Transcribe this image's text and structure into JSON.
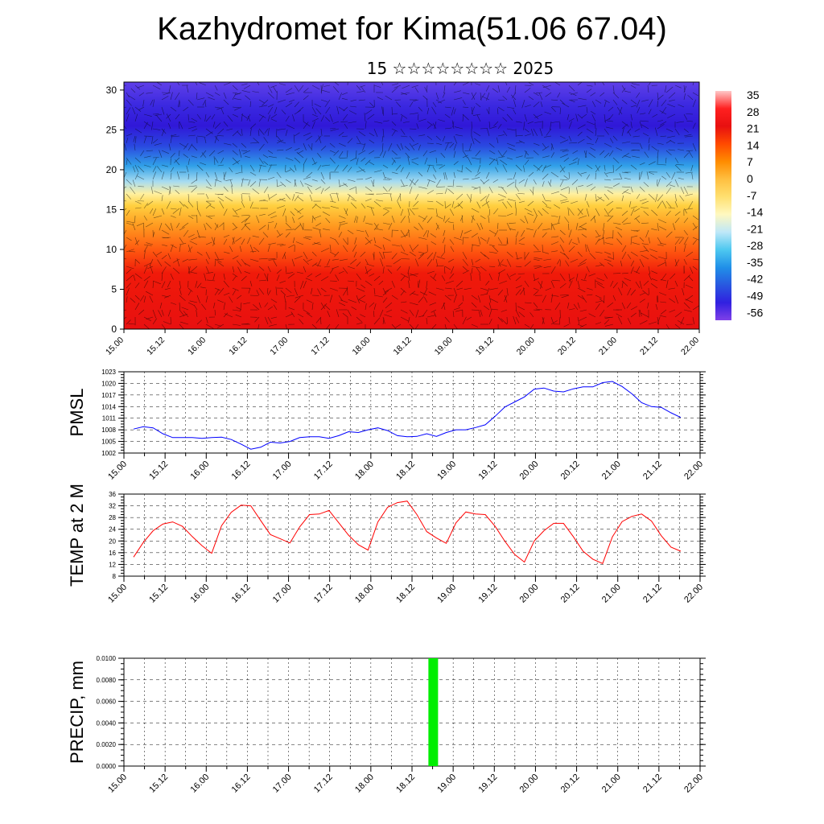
{
  "header": {
    "title": "Kazhydromet for Kima(51.06 67.04)",
    "subtitle": "15 ☆☆☆☆☆☆☆☆ 2025"
  },
  "chart_data": [
    {
      "type": "heatmap",
      "name": "cross-section",
      "x_ticks": [
        "15.00",
        "15.12",
        "16.00",
        "16.12",
        "17.00",
        "17.12",
        "18.00",
        "18.12",
        "19.00",
        "19.12",
        "20.00",
        "20.12",
        "21.00",
        "21.12",
        "22.00"
      ],
      "y_ticks": [
        "0",
        "5",
        "10",
        "15",
        "20",
        "25",
        "30"
      ],
      "ylim": [
        0,
        31
      ],
      "colorbar": {
        "labels": [
          "35",
          "28",
          "21",
          "14",
          "7",
          "0",
          "-7",
          "-14",
          "-21",
          "-28",
          "-35",
          "-42",
          "-49",
          "-56"
        ],
        "colors": [
          "#ffc8c8",
          "#ff2020",
          "#e81010",
          "#ff4a00",
          "#ff8c00",
          "#ffbf40",
          "#ffe070",
          "#fff8c0",
          "#bfe8f8",
          "#4ec8f0",
          "#2090e8",
          "#2858e0",
          "#3020e0",
          "#8040e8"
        ]
      },
      "vertical_profile": [
        {
          "y": 0,
          "color": "#e81010"
        },
        {
          "y": 7,
          "color": "#f01a0a"
        },
        {
          "y": 10,
          "color": "#ff5a10"
        },
        {
          "y": 13,
          "color": "#ff9a20"
        },
        {
          "y": 15.5,
          "color": "#ffd040"
        },
        {
          "y": 17,
          "color": "#fff0a0"
        },
        {
          "y": 18.5,
          "color": "#a8dcf0"
        },
        {
          "y": 20.5,
          "color": "#30a0e8"
        },
        {
          "y": 23,
          "color": "#2a48e0"
        },
        {
          "y": 25.5,
          "color": "#3018d8"
        },
        {
          "y": 28,
          "color": "#3a28e0"
        },
        {
          "y": 31,
          "color": "#6040e8"
        }
      ]
    },
    {
      "type": "line",
      "ylabel": "PMSL",
      "y_ticks": [
        "1002",
        "1005",
        "1008",
        "1011",
        "1014",
        "1017",
        "1020",
        "1023"
      ],
      "ylim": [
        1002,
        1023
      ],
      "x_ticks": [
        "15.00",
        "15.12",
        "16.00",
        "16.12",
        "17.00",
        "17.12",
        "18.00",
        "18.12",
        "19.00",
        "19.12",
        "20.00",
        "20.12",
        "21.00",
        "21.12",
        "22.00"
      ],
      "color": "#0000ff",
      "x": [
        0,
        3,
        6,
        9,
        12,
        15,
        18,
        21,
        24,
        27,
        30,
        33,
        36,
        39,
        42,
        45,
        48,
        51,
        54,
        57,
        60,
        63,
        66,
        69,
        72,
        75,
        78,
        81,
        84,
        87,
        90,
        93,
        96,
        99,
        102,
        105,
        108,
        111,
        114,
        117,
        120,
        123,
        126,
        129,
        132,
        135,
        138,
        141,
        144,
        147,
        150,
        153,
        156,
        159,
        162,
        165,
        168
      ],
      "values": [
        1008.2,
        1008.8,
        1008.5,
        1007,
        1006,
        1006,
        1006,
        1005.8,
        1006,
        1006.1,
        1005.5,
        1004.3,
        1003,
        1003.5,
        1004.8,
        1004.6,
        1005,
        1006,
        1006.2,
        1006.2,
        1005.8,
        1006.5,
        1007.5,
        1007.3,
        1008,
        1008.5,
        1007.8,
        1006.5,
        1006.2,
        1006.3,
        1007,
        1006.3,
        1007.3,
        1008,
        1008,
        1008.6,
        1009.3,
        1011.5,
        1013.9,
        1015.2,
        1016.5,
        1018.5,
        1018.8,
        1018,
        1017.8,
        1018.6,
        1019.1,
        1019.1,
        1020.2,
        1020.5,
        1019.2,
        1017.3,
        1015,
        1014,
        1013.8,
        1012.4,
        1011.2
      ]
    },
    {
      "type": "line",
      "ylabel": "TEMP at 2 M",
      "y_ticks": [
        "8",
        "12",
        "16",
        "20",
        "24",
        "28",
        "32",
        "36"
      ],
      "ylim": [
        8,
        36
      ],
      "x_ticks": [
        "15.00",
        "15.12",
        "16.00",
        "16.12",
        "17.00",
        "17.12",
        "18.00",
        "18.12",
        "19.00",
        "19.12",
        "20.00",
        "20.12",
        "21.00",
        "21.12",
        "22.00"
      ],
      "color": "#ff0000",
      "x": [
        0,
        3,
        6,
        9,
        12,
        15,
        18,
        21,
        24,
        27,
        30,
        33,
        36,
        39,
        42,
        45,
        48,
        51,
        54,
        57,
        60,
        63,
        66,
        69,
        72,
        75,
        78,
        81,
        84,
        87,
        90,
        93,
        96,
        99,
        102,
        105,
        108,
        111,
        114,
        117,
        120,
        123,
        126,
        129,
        132,
        135,
        138,
        141,
        144,
        147,
        150,
        153,
        156,
        159,
        162,
        165,
        168
      ],
      "values": [
        14.5,
        19.5,
        23.5,
        25.8,
        26.5,
        25,
        21.5,
        18.4,
        15.8,
        25.2,
        29.8,
        32.2,
        32,
        27,
        22.2,
        20.8,
        19.3,
        24.8,
        29,
        29.2,
        30.4,
        26.2,
        22,
        18.7,
        16.9,
        26.5,
        31.5,
        33.1,
        33.6,
        29,
        23.2,
        21,
        19.2,
        26.2,
        29.9,
        29.2,
        29,
        25,
        19.9,
        15.4,
        12.8,
        20,
        23.5,
        26,
        26,
        21.5,
        16.5,
        13.8,
        12.3,
        21.4,
        26.6,
        28.4,
        29.2,
        26.8,
        21.8,
        17.9,
        16.5
      ]
    },
    {
      "type": "bar",
      "ylabel": "PRECIP, mm",
      "y_ticks": [
        "0.0000",
        "0.0020",
        "0.0040",
        "0.0060",
        "0.0080",
        "0.0100"
      ],
      "ylim": [
        0,
        0.01
      ],
      "x_ticks": [
        "15.00",
        "15.12",
        "16.00",
        "16.12",
        "17.00",
        "17.12",
        "18.00",
        "18.12",
        "19.00",
        "19.12",
        "20.00",
        "20.12",
        "21.00",
        "21.12",
        "22.00"
      ],
      "color": "#00ee00",
      "bars": [
        {
          "x": 92,
          "value": 0.01
        }
      ]
    }
  ]
}
